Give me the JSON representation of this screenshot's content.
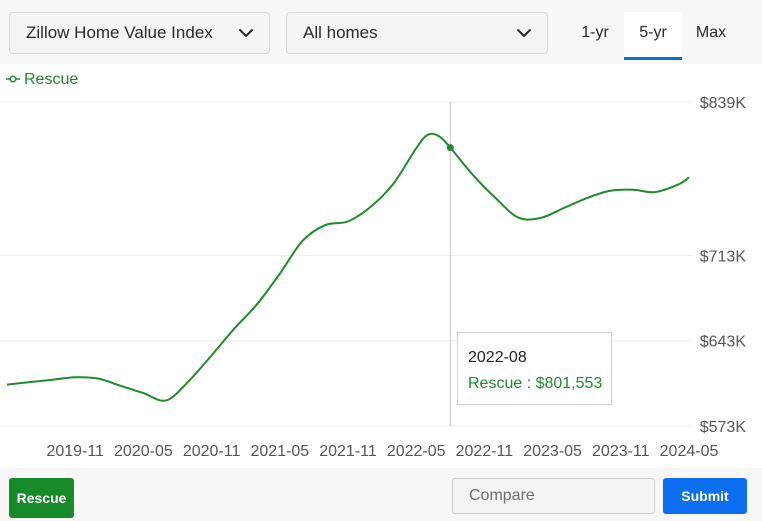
{
  "controls": {
    "metric_select": "Zillow Home Value Index",
    "homes_select": "All homes",
    "tabs": [
      {
        "label": "1-yr",
        "active": false
      },
      {
        "label": "5-yr",
        "active": true
      },
      {
        "label": "Max",
        "active": false
      }
    ]
  },
  "colors": {
    "series": "#1f8a2e",
    "accent": "#0d6fd6",
    "submit": "#0c6ff0",
    "rescue_button": "#178a2a"
  },
  "chart_data": {
    "type": "line",
    "x_start": "2019-05",
    "x_end": "2024-05",
    "x_ticks": [
      "2019-11",
      "2020-05",
      "2020-11",
      "2021-05",
      "2021-11",
      "2022-05",
      "2022-11",
      "2023-05",
      "2023-11",
      "2024-05"
    ],
    "y_ticks": [
      {
        "value": 573000,
        "label": "$573K"
      },
      {
        "value": 643000,
        "label": "$643K"
      },
      {
        "value": 713000,
        "label": "$713K"
      },
      {
        "value": 839000,
        "label": "$839K"
      }
    ],
    "ylim": [
      573000,
      839000
    ],
    "series": [
      {
        "name": "Rescue",
        "points": [
          [
            "2019-05",
            607000
          ],
          [
            "2019-07",
            609000
          ],
          [
            "2019-09",
            611000
          ],
          [
            "2019-11",
            613000
          ],
          [
            "2020-01",
            612000
          ],
          [
            "2020-03",
            606000
          ],
          [
            "2020-05",
            600000
          ],
          [
            "2020-07",
            594000
          ],
          [
            "2020-09",
            610000
          ],
          [
            "2020-11",
            631000
          ],
          [
            "2021-01",
            653000
          ],
          [
            "2021-03",
            673000
          ],
          [
            "2021-05",
            698000
          ],
          [
            "2021-07",
            725000
          ],
          [
            "2021-09",
            738000
          ],
          [
            "2021-11",
            741000
          ],
          [
            "2022-01",
            753000
          ],
          [
            "2022-03",
            772000
          ],
          [
            "2022-05",
            801000
          ],
          [
            "2022-06",
            812000
          ],
          [
            "2022-07",
            811000
          ],
          [
            "2022-08",
            801553
          ],
          [
            "2022-10",
            779000
          ],
          [
            "2022-12",
            760000
          ],
          [
            "2023-02",
            744000
          ],
          [
            "2023-04",
            744000
          ],
          [
            "2023-06",
            752000
          ],
          [
            "2023-08",
            760000
          ],
          [
            "2023-10",
            766000
          ],
          [
            "2023-12",
            767000
          ],
          [
            "2024-02",
            765000
          ],
          [
            "2024-04",
            771000
          ],
          [
            "2024-05",
            777000
          ]
        ]
      }
    ],
    "hover": {
      "x": "2022-08",
      "label": "Rescue : $801,553"
    }
  },
  "legend": {
    "label": "Rescue"
  },
  "bottom": {
    "rescue_label": "Rescue",
    "compare_placeholder": "Compare",
    "submit_label": "Submit"
  }
}
